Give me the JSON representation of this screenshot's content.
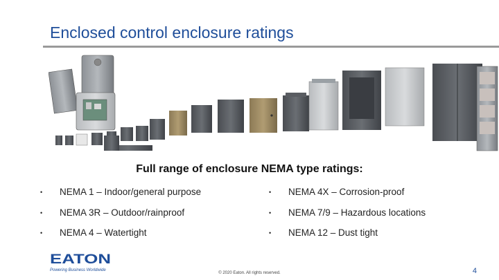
{
  "slide": {
    "title": "Enclosed control enclosure ratings",
    "subtitle": "Full range of enclosure NEMA type ratings:",
    "bullets_left": [
      "NEMA 1 – Indoor/general purpose",
      "NEMA 3R – Outdoor/rainproof",
      "NEMA 4 – Watertight"
    ],
    "bullets_right": [
      "NEMA 4X – Corrosion-proof",
      "NEMA 7/9 – Hazardous locations",
      "NEMA 12 – Dust tight"
    ],
    "bullet_glyph": "•",
    "footer": {
      "logo_text": "EATON",
      "tagline": "Powering Business Worldwide",
      "copyright": "© 2020 Eaton. All rights reserved.",
      "page_number": "4"
    }
  },
  "colors": {
    "title": "#1f4e9a",
    "rule": "#9a9a9a",
    "logo": "#1f4e9a"
  }
}
